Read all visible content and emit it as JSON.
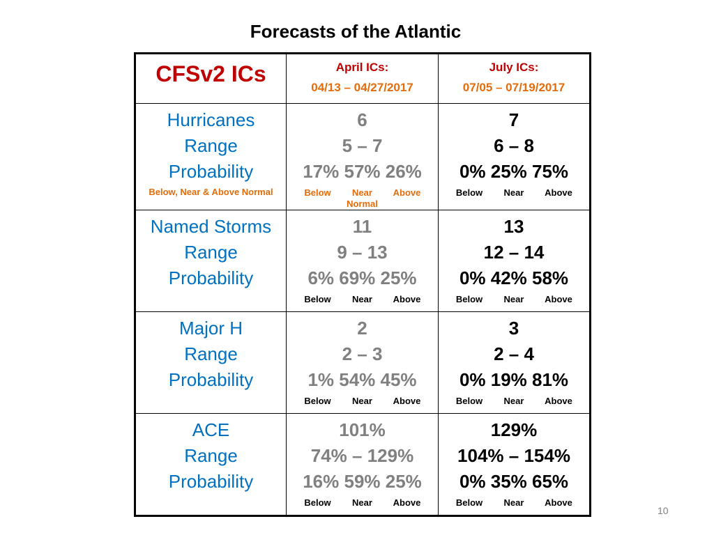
{
  "title": "Forecasts of the Atlantic",
  "slide_number": "10",
  "header": {
    "label": "CFSv2 ICs",
    "april": {
      "title": "April ICs:",
      "range": "04/13 – 04/27/2017"
    },
    "july": {
      "title": "July ICs:",
      "range": "07/05 – 07/19/2017"
    }
  },
  "rows": [
    {
      "labels": [
        "Hurricanes",
        "Range",
        "Probability"
      ],
      "note": "Below, Near & Above Normal",
      "april": {
        "values": [
          "6",
          "5 – 7",
          "17% 57% 26%"
        ],
        "cats": [
          "Below",
          "Near Normal",
          "Above"
        ]
      },
      "july": {
        "values": [
          "7",
          "6 – 8",
          "0%  25% 75%"
        ],
        "cats": [
          "Below",
          "Near",
          "Above"
        ]
      }
    },
    {
      "labels": [
        "Named Storms",
        "Range",
        "Probability"
      ],
      "april": {
        "values": [
          "11",
          "9 – 13",
          "6% 69% 25%"
        ],
        "cats": [
          "Below",
          "Near",
          "Above"
        ]
      },
      "july": {
        "values": [
          "13",
          "12 – 14",
          "0% 42% 58%"
        ],
        "cats": [
          "Below",
          "Near",
          "Above"
        ]
      }
    },
    {
      "labels": [
        "Major H",
        "Range",
        "Probability"
      ],
      "april": {
        "values": [
          "2",
          "2 – 3",
          "1% 54% 45%"
        ],
        "cats": [
          "Below",
          "Near",
          "Above"
        ]
      },
      "july": {
        "values": [
          "3",
          "2 – 4",
          "0% 19% 81%"
        ],
        "cats": [
          "Below",
          "Near",
          "Above"
        ]
      }
    },
    {
      "labels": [
        "ACE",
        "Range",
        "Probability"
      ],
      "april": {
        "values": [
          "101%",
          "74% – 129%",
          "16% 59% 25%"
        ],
        "cats": [
          "Below",
          "Near",
          "Above"
        ]
      },
      "july": {
        "values": [
          "129%",
          "104% – 154%",
          "0% 35% 65%"
        ],
        "cats": [
          "Below",
          "Near",
          "Above"
        ]
      }
    }
  ]
}
